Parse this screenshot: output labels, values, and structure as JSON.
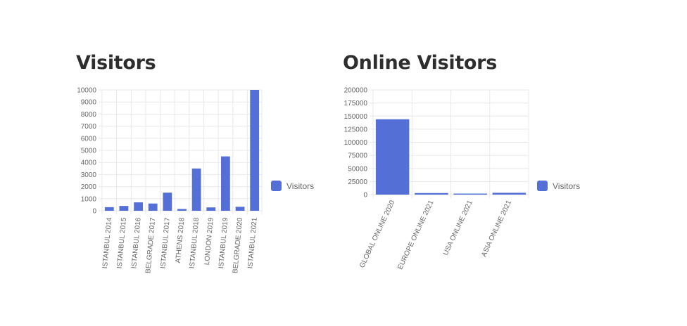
{
  "colors": {
    "bar": "#5470d6",
    "grid": "#e8e8e8",
    "tick_text": "#666666",
    "title": "#2e2e2e"
  },
  "chart_data": [
    {
      "type": "bar",
      "title": "Visitors",
      "categories": [
        "ISTANBUL 2014",
        "ISTANBUL 2015",
        "ISTANBUL 2016",
        "BELGRADE 2017",
        "ISTANBUL 2017",
        "ATHENS 2018",
        "ISTANBUL 2018",
        "LONDON 2019",
        "ISTANBUL 2019",
        "BELGRADE 2020",
        "ISTANBUL 2021"
      ],
      "series": [
        {
          "name": "Visitors",
          "values": [
            300,
            400,
            700,
            600,
            1500,
            150,
            3500,
            280,
            4500,
            330,
            10000
          ]
        }
      ],
      "ylim": [
        0,
        10000
      ],
      "yticks": [
        0,
        1000,
        2000,
        3000,
        4000,
        5000,
        6000,
        7000,
        8000,
        9000,
        10000
      ],
      "xlabel": "",
      "ylabel": "",
      "grid": true,
      "legend": "right"
    },
    {
      "type": "bar",
      "title": "Online Visitors",
      "categories": [
        "GLOBAL ONLINE 2020",
        "EUROPE ONLINE 2021",
        "USA ONLINE 2021",
        "ASIA ONLINE 2021"
      ],
      "series": [
        {
          "name": "Visitors",
          "values": [
            144000,
            3000,
            2000,
            3500
          ]
        }
      ],
      "ylim": [
        0,
        200000
      ],
      "yticks": [
        0,
        25000,
        50000,
        75000,
        100000,
        125000,
        150000,
        175000,
        200000
      ],
      "xlabel": "",
      "ylabel": "",
      "grid": true,
      "legend": "right"
    }
  ]
}
